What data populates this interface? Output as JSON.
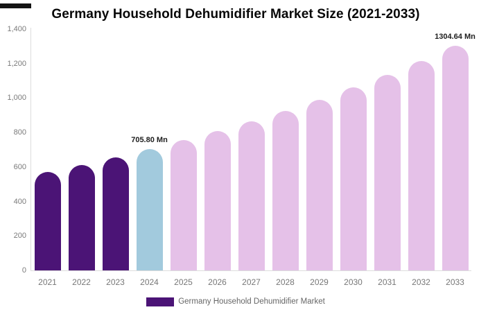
{
  "page": {
    "title": "Germany Household Dehumidifier Market Size (2021-2033)"
  },
  "chart_data": {
    "type": "bar",
    "title": "Germany Household Dehumidifier Market Size (2021-2033)",
    "xlabel": "",
    "ylabel": "",
    "categories": [
      "2021",
      "2022",
      "2023",
      "2024",
      "2025",
      "2026",
      "2027",
      "2028",
      "2029",
      "2030",
      "2031",
      "2032",
      "2033"
    ],
    "values": [
      570,
      612,
      656,
      705.8,
      755,
      808,
      865,
      926,
      991,
      1061,
      1136,
      1216,
      1304.64
    ],
    "unit": "Mn",
    "ylim": [
      0,
      1400
    ],
    "ytick_values": [
      0,
      200,
      400,
      600,
      800,
      1000,
      1200,
      1400
    ],
    "ytick_labels": [
      "0",
      "200",
      "400",
      "600",
      "800",
      "1,000",
      "1,200",
      "1,400"
    ],
    "grid": false,
    "bar_colors": [
      "#4b1476",
      "#4b1476",
      "#4b1476",
      "#a2cadd",
      "#e5c1e8",
      "#e5c1e8",
      "#e5c1e8",
      "#e5c1e8",
      "#e5c1e8",
      "#e5c1e8",
      "#e5c1e8",
      "#e5c1e8",
      "#e5c1e8"
    ],
    "annotations": [
      {
        "category": "2024",
        "text": "705.80 Mn"
      },
      {
        "category": "2033",
        "text": "1304.64 Mn"
      }
    ],
    "legend": {
      "position": "bottom",
      "label": "Germany Household Dehumidifier Market",
      "swatch_color": "#4b1476"
    },
    "colors": {
      "historical_bar": "#4b1476",
      "base_year_bar": "#a2cadd",
      "forecast_bar": "#e5c1e8",
      "axis_line": "#dcdcdc",
      "tick_text": "#777777",
      "title_text": "#070707",
      "annotation_text": "#1d1d1d",
      "legend_text": "#666666"
    }
  }
}
